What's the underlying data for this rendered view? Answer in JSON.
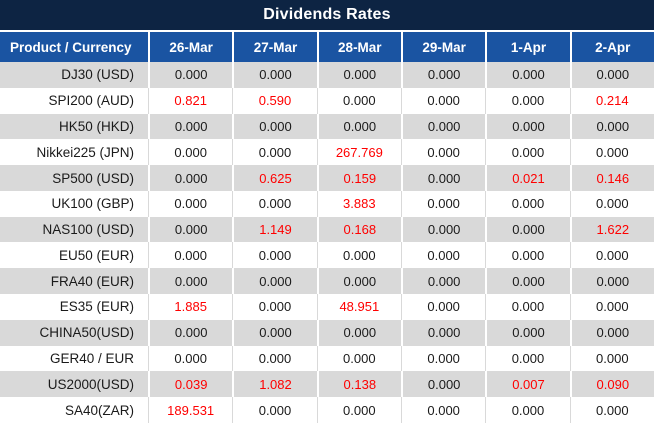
{
  "title": "Dividends Rates",
  "colors": {
    "title_bg": "#0d2443",
    "header_bg": "#1a54a2",
    "row_alt_bg": "#d9d9d9",
    "value_red": "#ff0000",
    "text_dark": "#1a1a1a"
  },
  "table": {
    "columns": [
      "Product / Currency",
      "26-Mar",
      "27-Mar",
      "28-Mar",
      "29-Mar",
      "1-Apr",
      "2-Apr"
    ],
    "rows": [
      {
        "label": "DJ30 (USD)",
        "cells": [
          {
            "t": "0.000",
            "red": false
          },
          {
            "t": "0.000",
            "red": false
          },
          {
            "t": "0.000",
            "red": false
          },
          {
            "t": "0.000",
            "red": false
          },
          {
            "t": "0.000",
            "red": false
          },
          {
            "t": "0.000",
            "red": false
          }
        ]
      },
      {
        "label": "SPI200 (AUD)",
        "cells": [
          {
            "t": "0.821",
            "red": true
          },
          {
            "t": "0.590",
            "red": true
          },
          {
            "t": "0.000",
            "red": false
          },
          {
            "t": "0.000",
            "red": false
          },
          {
            "t": "0.000",
            "red": false
          },
          {
            "t": "0.214",
            "red": true
          }
        ]
      },
      {
        "label": "HK50 (HKD)",
        "cells": [
          {
            "t": "0.000",
            "red": false
          },
          {
            "t": "0.000",
            "red": false
          },
          {
            "t": "0.000",
            "red": false
          },
          {
            "t": "0.000",
            "red": false
          },
          {
            "t": "0.000",
            "red": false
          },
          {
            "t": "0.000",
            "red": false
          }
        ]
      },
      {
        "label": "Nikkei225 (JPN)",
        "cells": [
          {
            "t": "0.000",
            "red": false
          },
          {
            "t": "0.000",
            "red": false
          },
          {
            "t": "267.769",
            "red": true
          },
          {
            "t": "0.000",
            "red": false
          },
          {
            "t": "0.000",
            "red": false
          },
          {
            "t": "0.000",
            "red": false
          }
        ]
      },
      {
        "label": "SP500 (USD)",
        "cells": [
          {
            "t": "0.000",
            "red": false
          },
          {
            "t": "0.625",
            "red": true
          },
          {
            "t": "0.159",
            "red": true
          },
          {
            "t": "0.000",
            "red": false
          },
          {
            "t": "0.021",
            "red": true
          },
          {
            "t": "0.146",
            "red": true
          }
        ]
      },
      {
        "label": "UK100 (GBP)",
        "cells": [
          {
            "t": "0.000",
            "red": false
          },
          {
            "t": "0.000",
            "red": false
          },
          {
            "t": "3.883",
            "red": true
          },
          {
            "t": "0.000",
            "red": false
          },
          {
            "t": "0.000",
            "red": false
          },
          {
            "t": "0.000",
            "red": false
          }
        ]
      },
      {
        "label": "NAS100 (USD)",
        "cells": [
          {
            "t": "0.000",
            "red": false
          },
          {
            "t": "1.149",
            "red": true
          },
          {
            "t": "0.168",
            "red": true
          },
          {
            "t": "0.000",
            "red": false
          },
          {
            "t": "0.000",
            "red": false
          },
          {
            "t": "1.622",
            "red": true
          }
        ]
      },
      {
        "label": "EU50 (EUR)",
        "cells": [
          {
            "t": "0.000",
            "red": false
          },
          {
            "t": "0.000",
            "red": false
          },
          {
            "t": "0.000",
            "red": false
          },
          {
            "t": "0.000",
            "red": false
          },
          {
            "t": "0.000",
            "red": false
          },
          {
            "t": "0.000",
            "red": false
          }
        ]
      },
      {
        "label": "FRA40 (EUR)",
        "cells": [
          {
            "t": "0.000",
            "red": false
          },
          {
            "t": "0.000",
            "red": false
          },
          {
            "t": "0.000",
            "red": false
          },
          {
            "t": "0.000",
            "red": false
          },
          {
            "t": "0.000",
            "red": false
          },
          {
            "t": "0.000",
            "red": false
          }
        ]
      },
      {
        "label": "ES35 (EUR)",
        "cells": [
          {
            "t": "1.885",
            "red": true
          },
          {
            "t": "0.000",
            "red": false
          },
          {
            "t": "48.951",
            "red": true
          },
          {
            "t": "0.000",
            "red": false
          },
          {
            "t": "0.000",
            "red": false
          },
          {
            "t": "0.000",
            "red": false
          }
        ]
      },
      {
        "label": "CHINA50(USD)",
        "cells": [
          {
            "t": "0.000",
            "red": false
          },
          {
            "t": "0.000",
            "red": false
          },
          {
            "t": "0.000",
            "red": false
          },
          {
            "t": "0.000",
            "red": false
          },
          {
            "t": "0.000",
            "red": false
          },
          {
            "t": "0.000",
            "red": false
          }
        ]
      },
      {
        "label": "GER40 / EUR",
        "cells": [
          {
            "t": "0.000",
            "red": false
          },
          {
            "t": "0.000",
            "red": false
          },
          {
            "t": "0.000",
            "red": false
          },
          {
            "t": "0.000",
            "red": false
          },
          {
            "t": "0.000",
            "red": false
          },
          {
            "t": "0.000",
            "red": false
          }
        ]
      },
      {
        "label": "US2000(USD)",
        "cells": [
          {
            "t": "0.039",
            "red": true
          },
          {
            "t": "1.082",
            "red": true
          },
          {
            "t": "0.138",
            "red": true
          },
          {
            "t": "0.000",
            "red": false
          },
          {
            "t": "0.007",
            "red": true
          },
          {
            "t": "0.090",
            "red": true
          }
        ]
      },
      {
        "label": "SA40(ZAR)",
        "cells": [
          {
            "t": "189.531",
            "red": true
          },
          {
            "t": "0.000",
            "red": false
          },
          {
            "t": "0.000",
            "red": false
          },
          {
            "t": "0.000",
            "red": false
          },
          {
            "t": "0.000",
            "red": false
          },
          {
            "t": "0.000",
            "red": false
          }
        ]
      }
    ]
  }
}
